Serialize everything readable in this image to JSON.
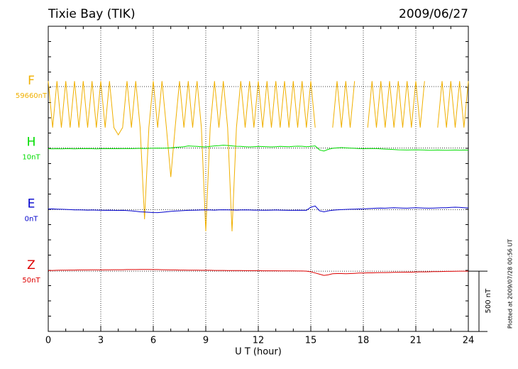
{
  "chart_data": {
    "type": "line",
    "title": "Tixie Bay (TIK)",
    "date": "2009/06/27",
    "xlabel": "U T (hour)",
    "footer": "Plotted at 2009/07/28 00:56 UT",
    "xlim": [
      0,
      24
    ],
    "xticks": [
      0,
      3,
      6,
      9,
      12,
      15,
      18,
      21,
      24
    ],
    "grid": true,
    "scale_bar": {
      "value": 500,
      "label": "500 nT"
    },
    "x": [
      0,
      0.25,
      0.5,
      0.75,
      1,
      1.25,
      1.5,
      1.75,
      2,
      2.25,
      2.5,
      2.75,
      3,
      3.25,
      3.5,
      3.75,
      4,
      4.25,
      4.5,
      4.75,
      5,
      5.25,
      5.5,
      5.75,
      6,
      6.25,
      6.5,
      6.75,
      7,
      7.25,
      7.5,
      7.75,
      8,
      8.25,
      8.5,
      8.75,
      9,
      9.25,
      9.5,
      9.75,
      10,
      10.25,
      10.5,
      10.75,
      11,
      11.25,
      11.5,
      11.75,
      12,
      12.25,
      12.5,
      12.75,
      13,
      13.25,
      13.5,
      13.75,
      14,
      14.25,
      14.5,
      14.75,
      15,
      15.25,
      15.5,
      15.75,
      16,
      16.25,
      16.5,
      16.75,
      17,
      17.25,
      17.5,
      17.75,
      18,
      18.25,
      18.5,
      18.75,
      19,
      19.25,
      19.5,
      19.75,
      20,
      20.25,
      20.5,
      20.75,
      21,
      21.25,
      21.5,
      21.75,
      22,
      22.25,
      22.5,
      22.75,
      23,
      23.25,
      23.5,
      23.75,
      24
    ],
    "series": [
      {
        "name": "F",
        "baseline_label": "59660nT",
        "color": "#f0b000",
        "values": [
          45,
          -340,
          45,
          -340,
          45,
          -340,
          45,
          -340,
          45,
          -340,
          45,
          -340,
          45,
          -340,
          45,
          -340,
          -400,
          -340,
          45,
          -340,
          45,
          -340,
          -1100,
          -340,
          45,
          -340,
          45,
          -340,
          -750,
          -340,
          45,
          -340,
          45,
          -340,
          45,
          -340,
          -1200,
          -340,
          45,
          -340,
          45,
          -340,
          -1200,
          -340,
          45,
          -340,
          45,
          -340,
          45,
          -340,
          45,
          -340,
          45,
          -340,
          45,
          -340,
          45,
          -340,
          45,
          -340,
          45,
          -340,
          null,
          null,
          null,
          -340,
          45,
          -340,
          45,
          -340,
          45,
          null,
          null,
          -340,
          45,
          -340,
          45,
          -340,
          45,
          -340,
          45,
          -340,
          45,
          -340,
          45,
          -340,
          45,
          null,
          null,
          -340,
          45,
          -340,
          45,
          -340,
          45,
          -340,
          45
        ]
      },
      {
        "name": "H",
        "baseline_label": "10nT",
        "color": "#00dd00",
        "values": [
          -5,
          -6,
          -5,
          -6,
          -5,
          -5,
          -6,
          -5,
          -5,
          -4,
          -5,
          -6,
          -5,
          -5,
          -4,
          -5,
          -5,
          -4,
          -3,
          -4,
          -3,
          -2,
          -3,
          -2,
          -1,
          0,
          -1,
          0,
          2,
          5,
          8,
          12,
          18,
          16,
          14,
          12,
          10,
          14,
          18,
          20,
          24,
          22,
          18,
          15,
          14,
          12,
          10,
          12,
          14,
          13,
          12,
          10,
          12,
          14,
          13,
          12,
          14,
          16,
          15,
          12,
          14,
          18,
          -15,
          -25,
          -10,
          -2,
          2,
          4,
          2,
          0,
          -2,
          -4,
          -5,
          -4,
          -3,
          -4,
          -6,
          -8,
          -10,
          -12,
          -14,
          -15,
          -16,
          -15,
          -14,
          -15,
          -16,
          -18,
          -17,
          -16,
          -17,
          -18,
          -17,
          -16,
          -17,
          -16,
          -17
        ]
      },
      {
        "name": "E",
        "baseline_label": "0nT",
        "color": "#0000cc",
        "values": [
          5,
          6,
          4,
          3,
          2,
          0,
          -2,
          -2,
          -3,
          -4,
          -3,
          -4,
          -5,
          -6,
          -5,
          -6,
          -7,
          -6,
          -8,
          -10,
          -14,
          -18,
          -20,
          -22,
          -24,
          -25,
          -22,
          -18,
          -15,
          -12,
          -10,
          -8,
          -6,
          -5,
          -4,
          -3,
          -2,
          -3,
          -4,
          -2,
          -1,
          -2,
          -3,
          -4,
          -3,
          -2,
          -3,
          -4,
          -4,
          -5,
          -5,
          -4,
          -3,
          -4,
          -5,
          -6,
          -6,
          -5,
          -6,
          -6,
          20,
          30,
          -10,
          -18,
          -10,
          -5,
          -2,
          0,
          2,
          3,
          4,
          5,
          6,
          8,
          10,
          12,
          13,
          12,
          14,
          15,
          14,
          13,
          12,
          14,
          15,
          14,
          13,
          12,
          13,
          14,
          15,
          16,
          18,
          20,
          18,
          16,
          14
        ]
      },
      {
        "name": "Z",
        "baseline_label": "50nT",
        "color": "#dd0000",
        "values": [
          5,
          6,
          7,
          8,
          8,
          9,
          9,
          10,
          10,
          10,
          11,
          11,
          10,
          11,
          11,
          12,
          12,
          12,
          13,
          13,
          13,
          14,
          14,
          14,
          13,
          13,
          12,
          11,
          10,
          10,
          9,
          9,
          8,
          8,
          8,
          7,
          7,
          7,
          6,
          6,
          6,
          5,
          5,
          5,
          5,
          4,
          4,
          4,
          4,
          3,
          3,
          3,
          3,
          2,
          2,
          2,
          2,
          1,
          1,
          0,
          -5,
          -15,
          -25,
          -35,
          -30,
          -22,
          -20,
          -20,
          -22,
          -20,
          -18,
          -16,
          -15,
          -14,
          -14,
          -13,
          -12,
          -12,
          -11,
          -10,
          -10,
          -9,
          -8,
          -8,
          -7,
          -6,
          -6,
          -5,
          -4,
          -4,
          -3,
          -2,
          -2,
          -1,
          0,
          0,
          0
        ]
      }
    ]
  }
}
